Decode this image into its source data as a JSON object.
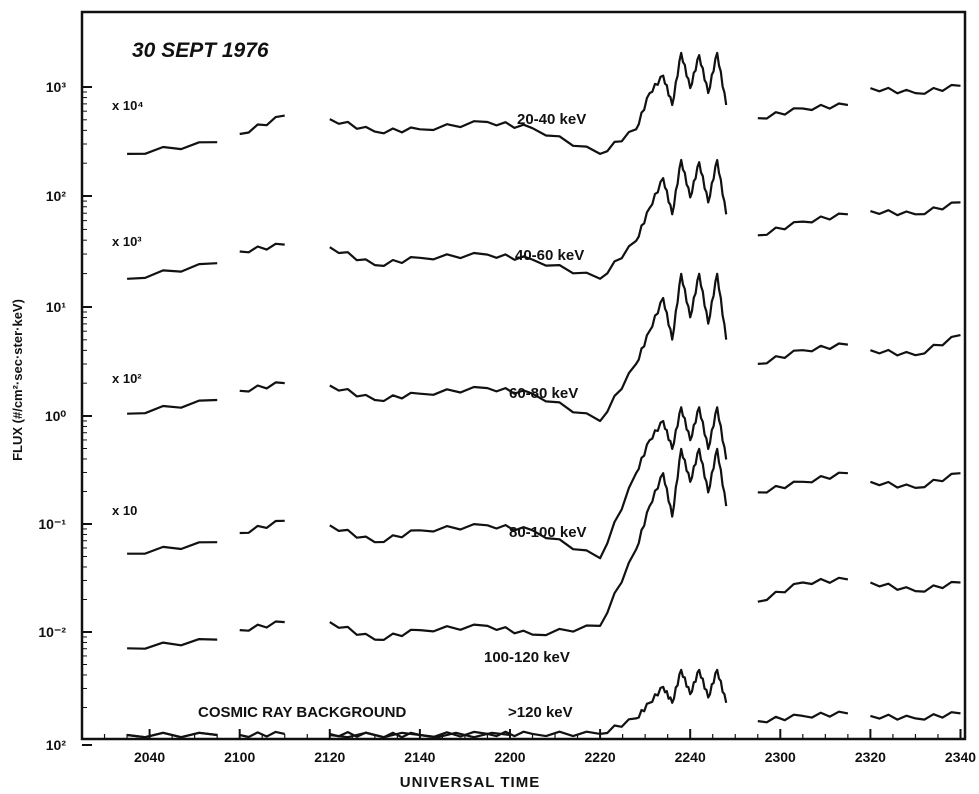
{
  "chart_data": {
    "type": "line",
    "title": "30 SEPT 1976",
    "xlabel": "UNIVERSAL TIME",
    "ylabel": "FLUX (#/cm²·sec·ster·keV)",
    "x_ticks": [
      "2040",
      "2100",
      "2120",
      "2140",
      "2200",
      "2220",
      "2240",
      "2300",
      "2320",
      "2340"
    ],
    "y_ticks": [
      "10²",
      "10¹",
      "10⁰",
      "10⁻¹",
      "10⁻²",
      "10³",
      "10²"
    ],
    "y_scale": "log",
    "multipliers": [
      "x 10⁴",
      "x 10³",
      "x 10²",
      "x 10"
    ],
    "background_label": "COSMIC RAY BACKGROUND",
    "series": [
      {
        "name": "20-40 keV",
        "multiplier": "x 10⁴",
        "x": [
          "2035",
          "2055",
          "2100",
          "2110",
          "2120",
          "2130",
          "2140",
          "2155",
          "2205",
          "2220",
          "2228",
          "2231",
          "2234",
          "2236",
          "2238",
          "2240",
          "2242",
          "2244",
          "2246",
          "2248",
          "2255",
          "2305",
          "2315",
          "2320",
          "2330",
          "2340"
        ],
        "values": [
          250,
          320,
          380,
          560,
          520,
          400,
          420,
          490,
          430,
          250,
          420,
          900,
          1300,
          700,
          2100,
          1000,
          2000,
          900,
          2100,
          700,
          530,
          650,
          700,
          1000,
          900,
          1050
        ]
      },
      {
        "name": "40-60 keV",
        "multiplier": "x 10³",
        "x": [
          "2035",
          "2055",
          "2100",
          "2110",
          "2120",
          "2130",
          "2140",
          "2155",
          "2205",
          "2220",
          "2228",
          "2231",
          "2234",
          "2236",
          "2238",
          "2240",
          "2242",
          "2244",
          "2246",
          "2248",
          "2255",
          "2305",
          "2315",
          "2320",
          "2330",
          "2340"
        ],
        "values": [
          18,
          25,
          32,
          37,
          35,
          24,
          28,
          30,
          27,
          18,
          40,
          80,
          150,
          70,
          220,
          100,
          210,
          90,
          220,
          70,
          45,
          60,
          70,
          75,
          70,
          90
        ]
      },
      {
        "name": "60-80 keV",
        "multiplier": "x 10²",
        "x": [
          "2035",
          "2055",
          "2100",
          "2110",
          "2120",
          "2130",
          "2140",
          "2155",
          "2205",
          "2220",
          "2228",
          "2231",
          "2234",
          "2236",
          "2238",
          "2240",
          "2242",
          "2244",
          "2246",
          "2248",
          "2255",
          "2305",
          "2315",
          "2320",
          "2330",
          "2340"
        ],
        "values": [
          1.05,
          1.4,
          1.7,
          2.0,
          1.9,
          1.4,
          1.6,
          1.8,
          1.6,
          0.9,
          3,
          6,
          12,
          5,
          20,
          8,
          20,
          7,
          20,
          5,
          3,
          4,
          4.5,
          4,
          3.6,
          5.5
        ]
      },
      {
        "name": "80-100 keV",
        "multiplier": "x 10",
        "x": [
          "2035",
          "2055",
          "2100",
          "2110",
          "2120",
          "2130",
          "2140",
          "2155",
          "2205",
          "2220",
          "2228",
          "2231",
          "2234",
          "2236",
          "2238",
          "2240",
          "2242",
          "2244",
          "2246",
          "2248",
          "2255",
          "2305",
          "2315",
          "2320",
          "2330",
          "2340"
        ],
        "values": [
          0.055,
          0.07,
          0.085,
          0.11,
          0.1,
          0.07,
          0.09,
          0.1,
          0.09,
          0.05,
          0.3,
          0.6,
          0.9,
          0.5,
          1.2,
          0.6,
          1.2,
          0.5,
          1.2,
          0.4,
          0.2,
          0.25,
          0.3,
          0.25,
          0.22,
          0.3
        ]
      },
      {
        "name": "100-120 keV",
        "multiplier": "",
        "x": [
          "2035",
          "2055",
          "2100",
          "2110",
          "2120",
          "2130",
          "2140",
          "2155",
          "2205",
          "2220",
          "2228",
          "2231",
          "2234",
          "2236",
          "2238",
          "2240",
          "2242",
          "2244",
          "2246",
          "2248",
          "2255",
          "2305",
          "2315",
          "2320",
          "2330",
          "2340"
        ],
        "values": [
          0.0075,
          0.009,
          0.011,
          0.013,
          0.013,
          0.009,
          0.011,
          0.012,
          0.01,
          0.012,
          0.06,
          0.15,
          0.3,
          0.12,
          0.5,
          0.25,
          0.5,
          0.2,
          0.5,
          0.15,
          0.02,
          0.03,
          0.032,
          0.03,
          0.025,
          0.03
        ]
      },
      {
        "name": ">120 keV",
        "multiplier": "",
        "x": [
          "2035",
          "2055",
          "2100",
          "2110",
          "2120",
          "2130",
          "2140",
          "2155",
          "2205",
          "2220",
          "2228",
          "2231",
          "2234",
          "2236",
          "2238",
          "2240",
          "2242",
          "2244",
          "2246",
          "2248",
          "2255",
          "2305",
          "2315",
          "2320",
          "2330",
          "2340"
        ],
        "values": [
          0.00122,
          0.00125,
          0.00125,
          0.0013,
          0.0013,
          0.00127,
          0.00127,
          0.0013,
          0.0013,
          0.0013,
          0.0018,
          0.0025,
          0.0035,
          0.0025,
          0.005,
          0.003,
          0.005,
          0.0028,
          0.005,
          0.0025,
          0.0017,
          0.0019,
          0.002,
          0.0019,
          0.0018,
          0.002
        ]
      },
      {
        "name": "COSMIC RAY BACKGROUND",
        "multiplier": "",
        "x": [
          "2035",
          "2055",
          "2100",
          "2120",
          "2140",
          "2200"
        ],
        "values": [
          0.00105,
          0.00105,
          0.00106,
          0.00106,
          0.00105,
          0.00105
        ]
      }
    ],
    "grid": false,
    "legend": "none"
  }
}
